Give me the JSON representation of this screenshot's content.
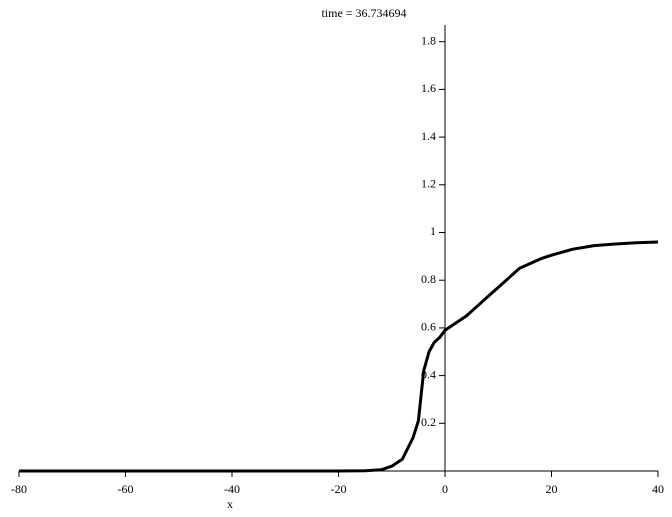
{
  "chart_data": {
    "type": "line",
    "title": "time = 36.734694",
    "x_label": "x",
    "x": [
      -80,
      -60,
      -40,
      -20,
      -15,
      -12,
      -10,
      -8,
      -6,
      -5,
      -4,
      -3,
      -2,
      -1,
      0,
      2,
      4,
      6,
      8,
      10,
      12,
      14,
      16,
      18,
      20,
      24,
      28,
      32,
      36,
      40
    ],
    "series": [
      {
        "color": "#000000",
        "values": [
          0,
          0,
          0,
          0,
          0.001,
          0.005,
          0.02,
          0.05,
          0.14,
          0.21,
          0.42,
          0.5,
          0.54,
          0.56,
          0.59,
          0.62,
          0.65,
          0.69,
          0.73,
          0.77,
          0.81,
          0.85,
          0.87,
          0.89,
          0.905,
          0.93,
          0.945,
          0.952,
          0.957,
          0.96
        ]
      }
    ],
    "xlim": [
      -80,
      40
    ],
    "ylim": [
      0,
      1.87
    ],
    "xticks": [
      -80,
      -60,
      -40,
      -20,
      0,
      20,
      40
    ],
    "yticks": [
      0.2,
      0.4,
      0.6,
      0.8,
      1,
      1.2,
      1.4,
      1.6,
      1.8
    ]
  }
}
